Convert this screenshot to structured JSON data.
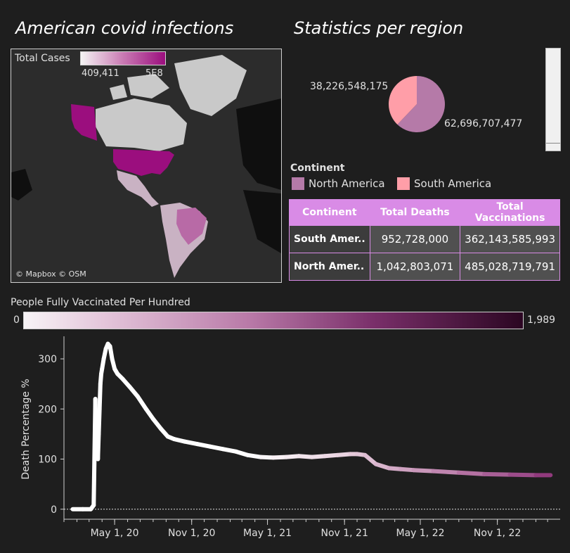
{
  "left_panel": {
    "title": "American covid infections"
  },
  "right_panel": {
    "title": "Statistics per region"
  },
  "map": {
    "legend_title": "Total Cases",
    "legend_min": "409,411",
    "legend_max": "5E8",
    "attribution": "© Mapbox © OSM",
    "colors": {
      "usa": "#9b0e7e",
      "alaska": "#9b0e7e",
      "brazil": "#b86aa6",
      "latam": "#c9b2c3",
      "land": "#c9c9c9",
      "ocean": "#2c2c2c",
      "other": "#0f0f0f"
    }
  },
  "pie": {
    "label_south": "38,226,548,175",
    "label_north": "62,696,707,477",
    "north_value": 62696707477,
    "south_value": 38226548175,
    "north_color": "#b57aa8",
    "south_color": "#ff9ea8"
  },
  "continent_legend": {
    "title": "Continent",
    "items": [
      {
        "label": "North America",
        "color": "#b57aa8"
      },
      {
        "label": "South America",
        "color": "#ff9ea8"
      }
    ]
  },
  "table": {
    "headers": [
      "Continent",
      "Total Deaths",
      "Total Vaccinations"
    ],
    "rows": [
      [
        "South Amer..",
        "952,728,000",
        "362,143,585,993"
      ],
      [
        "North Amer..",
        "1,042,803,071",
        "485,028,719,791"
      ]
    ]
  },
  "vacc_legend": {
    "title": "People Fully Vaccinated Per Hundred",
    "min": "0",
    "max": "1,989"
  },
  "chart_data": {
    "type": "line",
    "title": "",
    "ylabel": "Death  Percentage %",
    "xlabel": "",
    "ylim": [
      -20,
      345
    ],
    "yticks": [
      0,
      100,
      200,
      300
    ],
    "ytick_labels": [
      "0",
      "100",
      "200",
      "300"
    ],
    "xticks": [
      "2020-05-01",
      "2020-11-01",
      "2021-05-01",
      "2021-11-01",
      "2022-05-01",
      "2022-11-01"
    ],
    "xtick_labels": [
      "May 1, 20",
      "Nov 1, 20",
      "May 1, 21",
      "Nov 1, 21",
      "May 1, 22",
      "Nov 1, 22"
    ],
    "x_range": [
      "2020-01-01",
      "2023-03-31"
    ],
    "series": [
      {
        "x": [
          "2020-01-22",
          "2020-02-15",
          "2020-03-05",
          "2020-03-12",
          "2020-03-16",
          "2020-03-18",
          "2020-03-20",
          "2020-03-22",
          "2020-03-24",
          "2020-03-26",
          "2020-03-28",
          "2020-03-30",
          "2020-04-01",
          "2020-04-05",
          "2020-04-10",
          "2020-04-15",
          "2020-04-20",
          "2020-04-25",
          "2020-05-01",
          "2020-05-08",
          "2020-05-20",
          "2020-06-05",
          "2020-06-25",
          "2020-07-15",
          "2020-08-01",
          "2020-08-20",
          "2020-09-05",
          "2020-09-20",
          "2020-10-15",
          "2020-11-15",
          "2020-12-15",
          "2021-01-15",
          "2021-02-15",
          "2021-03-15",
          "2021-04-15",
          "2021-05-15",
          "2021-06-15",
          "2021-07-15",
          "2021-08-15",
          "2021-09-15",
          "2021-10-15",
          "2021-11-15",
          "2021-12-01",
          "2021-12-20",
          "2022-01-15",
          "2022-02-15",
          "2022-03-15",
          "2022-04-15",
          "2022-06-01",
          "2022-08-01",
          "2022-10-01",
          "2022-12-01",
          "2023-02-01",
          "2023-03-08"
        ],
        "values": [
          0,
          0,
          0,
          8,
          220,
          120,
          180,
          100,
          150,
          200,
          250,
          270,
          280,
          300,
          320,
          330,
          325,
          300,
          280,
          270,
          260,
          245,
          225,
          200,
          180,
          160,
          145,
          140,
          135,
          130,
          125,
          120,
          115,
          108,
          104,
          103,
          104,
          106,
          104,
          106,
          108,
          110,
          110,
          108,
          90,
          82,
          80,
          78,
          76,
          73,
          70,
          69,
          68,
          68
        ]
      }
    ],
    "color_scale": [
      "#ffffff",
      "#e8d0de",
      "#b97aa8",
      "#8a2f76"
    ]
  }
}
